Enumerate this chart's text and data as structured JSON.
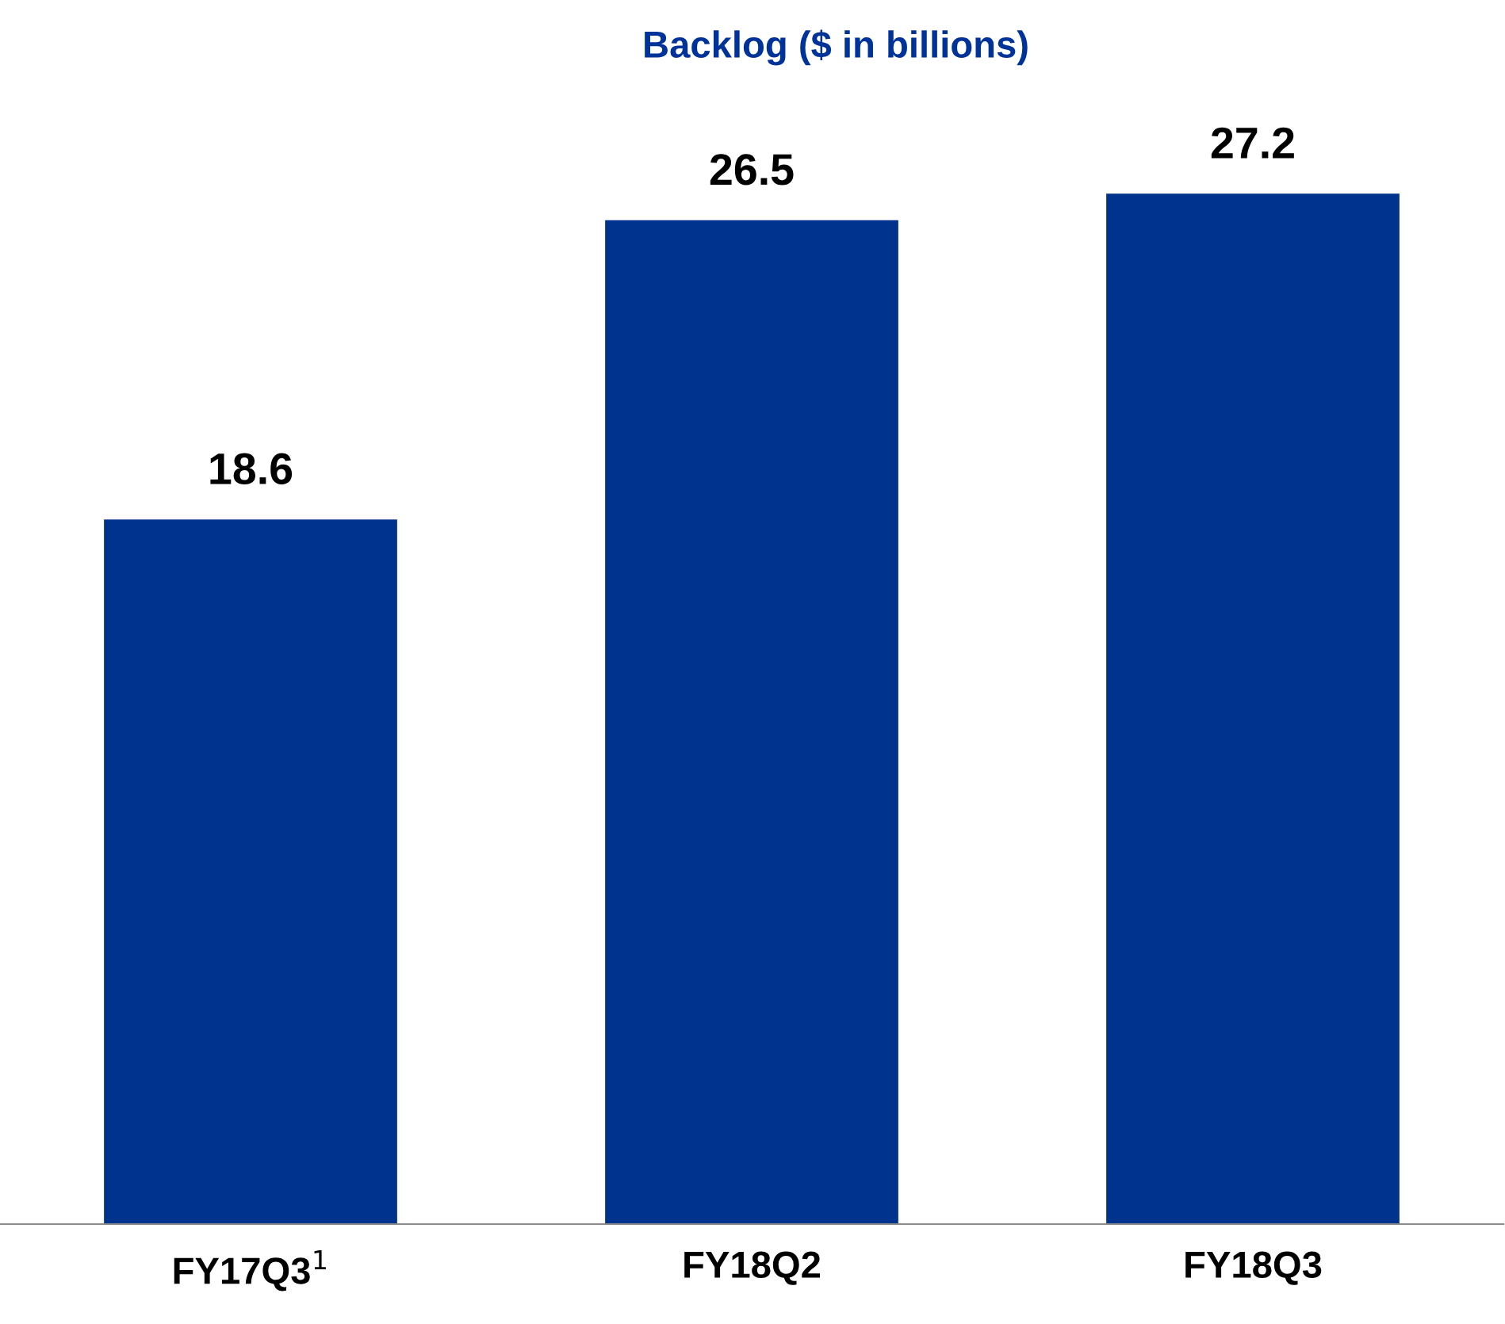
{
  "chart_data": {
    "type": "bar",
    "title": "Backlog ($ in billions)",
    "categories": [
      "FY17Q3$^{1}$",
      "FY18Q2",
      "FY18Q3"
    ],
    "values": [
      18.6,
      26.5,
      27.2
    ],
    "color": "#00338d",
    "data_labels": true,
    "grid": false,
    "legend": false
  }
}
